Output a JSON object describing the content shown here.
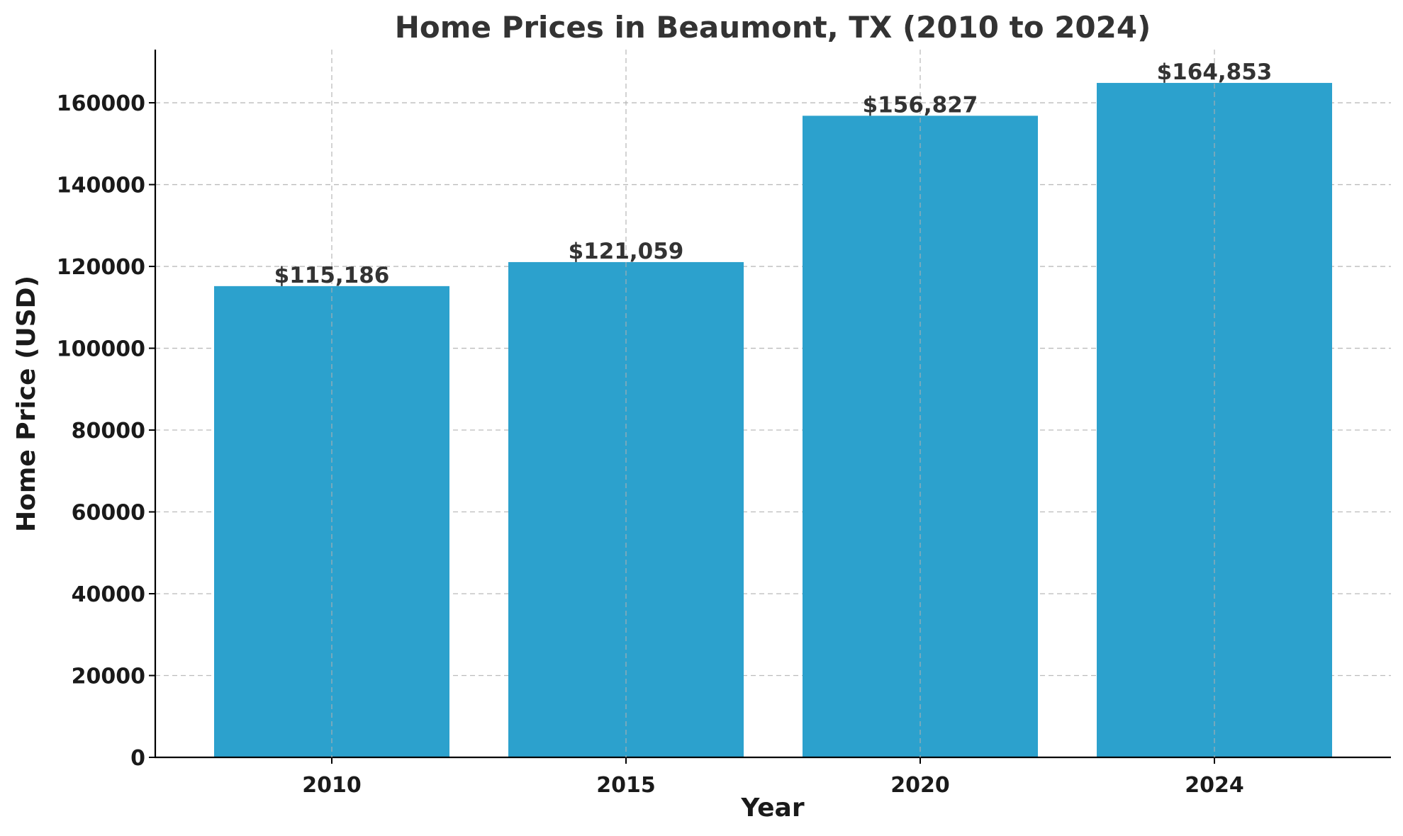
{
  "chart_data": {
    "type": "bar",
    "title": "Home Prices in Beaumont, TX (2010 to 2024)",
    "xlabel": "Year",
    "ylabel": "Home Price (USD)",
    "categories": [
      "2010",
      "2015",
      "2020",
      "2024"
    ],
    "values": [
      115186,
      121059,
      156827,
      164853
    ],
    "data_labels": [
      "$115,186",
      "$121,059",
      "$156,827",
      "$164,853"
    ],
    "yticks": [
      0,
      20000,
      40000,
      60000,
      80000,
      100000,
      120000,
      140000,
      160000
    ],
    "ylim": [
      0,
      173000
    ],
    "grid": true,
    "bar_color": "#2ca1cd"
  }
}
